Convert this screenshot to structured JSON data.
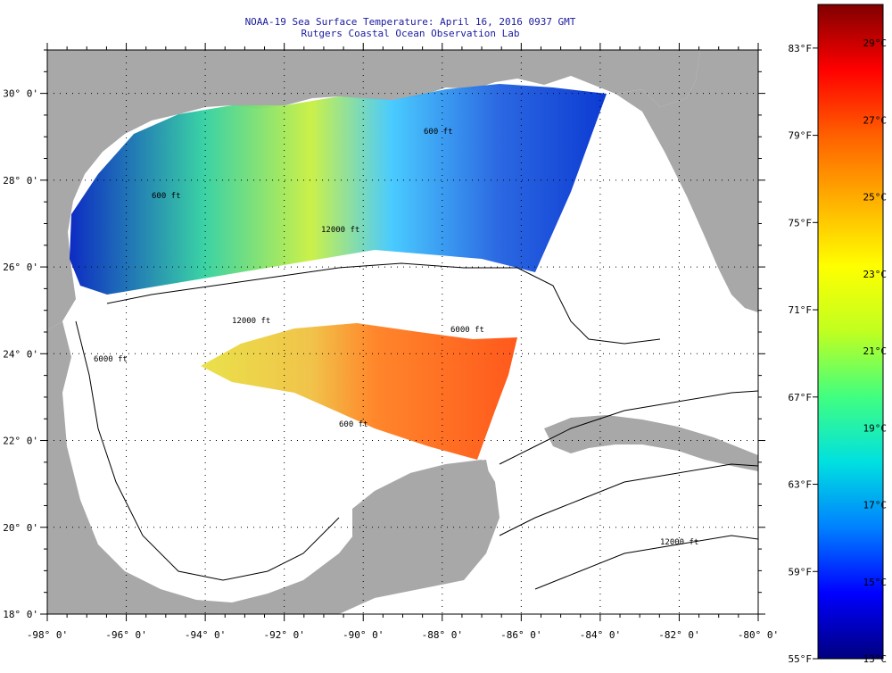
{
  "header": {
    "title_line1": "NOAA-19 Sea Surface Temperature:  April 16, 2016 0937 GMT",
    "title_line2": "Rutgers Coastal Ocean Observation Lab"
  },
  "map": {
    "lon_range": [
      -98,
      -80
    ],
    "lat_range": [
      18,
      31
    ],
    "lon_ticks": [
      "-98° 0'",
      "-96° 0'",
      "-94° 0'",
      "-92° 0'",
      "-90° 0'",
      "-88° 0'",
      "-86° 0'",
      "-84° 0'",
      "-82° 0'",
      "-80° 0'"
    ],
    "lat_ticks": [
      "18° 0'",
      "20° 0'",
      "22° 0'",
      "24° 0'",
      "26° 0'",
      "28° 0'",
      "30° 0'"
    ],
    "contour_labels": [
      "600 ft",
      "12000 ft",
      "12000 ft",
      "6000 ft",
      "600 ft",
      "6000 ft",
      "600 ft",
      "12000 ft"
    ],
    "colors": {
      "land": "#a8a8a8",
      "ocean": "#ffffff",
      "contour": "#000000"
    }
  },
  "colorbar": {
    "fahrenheit_labels": [
      "83°F",
      "79°F",
      "75°F",
      "71°F",
      "67°F",
      "63°F",
      "59°F",
      "55°F"
    ],
    "celsius_labels": [
      "29°C",
      "27°C",
      "25°C",
      "23°C",
      "21°C",
      "19°C",
      "17°C",
      "15°C",
      "13°C"
    ],
    "range_f": [
      55,
      85
    ],
    "range_c": [
      13,
      30
    ],
    "gradient": [
      "#00007f",
      "#0000ff",
      "#0080ff",
      "#00e0e0",
      "#40ff80",
      "#c0ff20",
      "#ffff00",
      "#ffb000",
      "#ff6000",
      "#ff0000",
      "#800000"
    ]
  }
}
